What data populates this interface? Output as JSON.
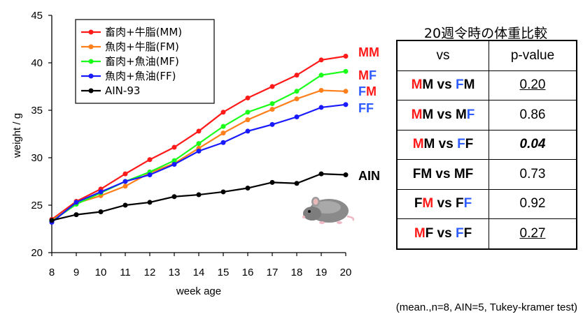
{
  "chart_data": {
    "type": "line",
    "xlabel": "week age",
    "ylabel": "weight / g",
    "xlim": [
      8,
      20
    ],
    "ylim": [
      20,
      45
    ],
    "xticks": [
      8,
      9,
      10,
      11,
      12,
      13,
      14,
      15,
      16,
      17,
      18,
      19,
      20
    ],
    "yticks": [
      20,
      25,
      30,
      35,
      40,
      45
    ],
    "grid": false,
    "legend_position": "top-left",
    "x": [
      8,
      9,
      10,
      11,
      12,
      13,
      14,
      15,
      16,
      17,
      18,
      19,
      20
    ],
    "series": [
      {
        "name": "畜肉+牛脂(MM)",
        "color": "#ff1a1a",
        "end_label": "MM",
        "values": [
          23.5,
          25.4,
          26.7,
          28.3,
          29.8,
          31.1,
          32.8,
          34.8,
          36.3,
          37.5,
          38.7,
          40.3,
          40.7
        ]
      },
      {
        "name": "魚肉+牛脂(FM)",
        "color": "#ff7f1a",
        "end_label": "FM",
        "values": [
          23.4,
          25.2,
          26.0,
          27.0,
          28.4,
          29.4,
          31.0,
          32.6,
          34.0,
          35.1,
          36.2,
          37.1,
          37.0
        ]
      },
      {
        "name": "畜肉+魚油(MF)",
        "color": "#1aff1a",
        "end_label": "MF",
        "values": [
          23.3,
          25.1,
          26.3,
          27.5,
          28.5,
          29.7,
          31.5,
          33.3,
          34.8,
          35.7,
          37.0,
          38.7,
          39.1
        ]
      },
      {
        "name": "魚肉+魚油(FF)",
        "color": "#1a1aff",
        "end_label": "FF",
        "values": [
          23.2,
          25.3,
          26.4,
          27.5,
          28.2,
          29.3,
          30.7,
          31.6,
          32.8,
          33.5,
          34.3,
          35.3,
          35.6
        ]
      },
      {
        "name": "AIN-93",
        "color": "#000000",
        "end_label": "AIN",
        "values": [
          23.4,
          24.0,
          24.3,
          25.0,
          25.3,
          25.9,
          26.1,
          26.4,
          26.8,
          27.4,
          27.3,
          28.3,
          28.2
        ]
      }
    ]
  },
  "comparison": {
    "title": "20週令時の体重比較",
    "header_vs": "vs",
    "header_p": "p-value",
    "rows": [
      {
        "a": "MM",
        "b": "FM",
        "p": "0.20"
      },
      {
        "a": "MM",
        "b": "MF",
        "p": "0.86"
      },
      {
        "a": "MM",
        "b": "FF",
        "p": "0.04"
      },
      {
        "a": "FM",
        "b": "MF",
        "p": "0.73"
      },
      {
        "a": "FM",
        "b": "FF",
        "p": "0.92"
      },
      {
        "a": "MF",
        "b": "FF",
        "p": "0.27"
      }
    ]
  },
  "footnote": "(mean.,n=8, AIN=5, Tukey-kramer test)",
  "colors": {
    "M": "#ff1a1a",
    "F": "#2f5cff",
    "ink": "#000000"
  },
  "icons": {
    "mascot": "mouse-icon"
  }
}
